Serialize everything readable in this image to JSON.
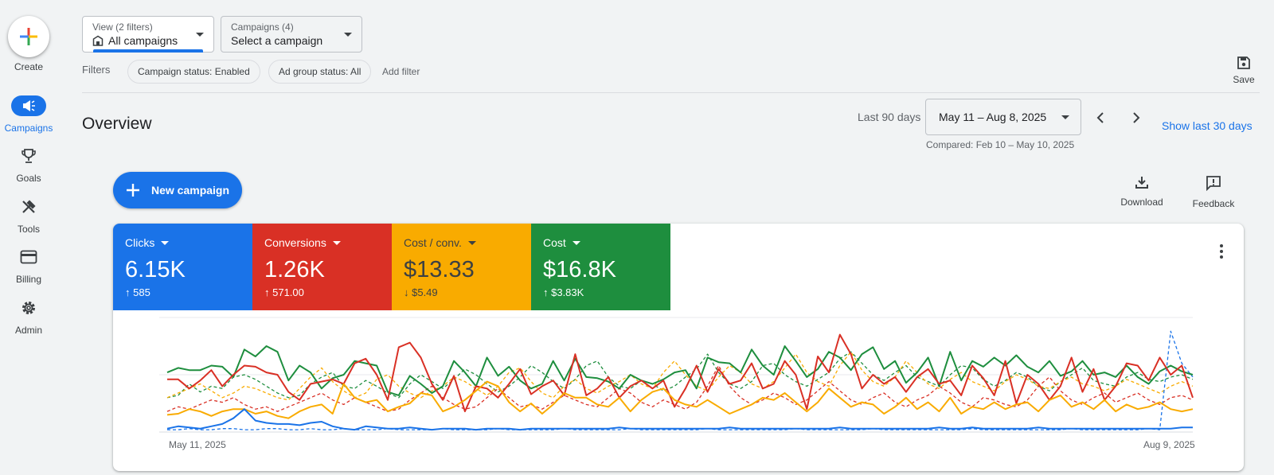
{
  "rail": {
    "create_label": "Create",
    "items": [
      {
        "label": "Campaigns",
        "icon": "megaphone-icon",
        "active": true
      },
      {
        "label": "Goals",
        "icon": "trophy-icon",
        "active": false
      },
      {
        "label": "Tools",
        "icon": "tools-icon",
        "active": false
      },
      {
        "label": "Billing",
        "icon": "credit-card-icon",
        "active": false
      },
      {
        "label": "Admin",
        "icon": "gear-icon",
        "active": false
      }
    ]
  },
  "filterbar": {
    "view_caption": "View (2 filters)",
    "view_value": "All campaigns",
    "campaigns_caption": "Campaigns (4)",
    "campaigns_value": "Select a campaign",
    "filters_label": "Filters",
    "chips": [
      "Campaign status: Enabled",
      "Ad group status: All"
    ],
    "add_filter": "Add filter",
    "save_label": "Save"
  },
  "header": {
    "title": "Overview",
    "range_label": "Last 90 days",
    "date_range": "May 11 – Aug 8, 2025",
    "compared": "Compared: Feb 10 – May 10, 2025",
    "show_last": "Show last 30 days"
  },
  "actions": {
    "new_campaign": "New campaign",
    "download": "Download",
    "feedback": "Feedback"
  },
  "metrics": [
    {
      "name": "Clicks",
      "value": "6.15K",
      "delta": "↑ 585",
      "color": "#1a73e8"
    },
    {
      "name": "Conversions",
      "value": "1.26K",
      "delta": "↑ 571.00",
      "color": "#d93025"
    },
    {
      "name": "Cost / conv.",
      "value": "$13.33",
      "delta": "↓ $5.49",
      "color": "#f9ab00"
    },
    {
      "name": "Cost",
      "value": "$16.8K",
      "delta": "↑ $3.83K",
      "color": "#1e8e3e"
    }
  ],
  "chart_data": {
    "type": "line",
    "x_start_label": "May 11, 2025",
    "x_end_label": "Aug 9, 2025",
    "grid": true,
    "series": [
      {
        "color": "#1e8e3e",
        "style": "solid",
        "values": [
          52,
          56,
          54,
          54,
          58,
          57,
          48,
          72,
          66,
          75,
          70,
          45,
          58,
          52,
          38,
          47,
          50,
          62,
          60,
          58,
          35,
          32,
          49,
          42,
          34,
          40,
          62,
          52,
          40,
          65,
          49,
          57,
          45,
          38,
          42,
          62,
          45,
          64,
          48,
          47,
          44,
          38,
          50,
          45,
          42,
          46,
          52,
          54,
          38,
          65,
          61,
          60,
          52,
          72,
          58,
          50,
          75,
          62,
          48,
          55,
          70,
          65,
          54,
          68,
          74,
          55,
          62,
          43,
          52,
          65,
          40,
          70,
          45,
          62,
          57,
          65,
          58,
          67,
          57,
          52,
          62,
          49,
          53,
          62,
          50,
          52,
          48,
          58,
          48,
          42,
          53,
          58,
          53,
          50
        ]
      },
      {
        "color": "#d93025",
        "style": "solid",
        "values": [
          46,
          46,
          38,
          45,
          54,
          40,
          50,
          58,
          57,
          52,
          50,
          35,
          28,
          42,
          44,
          46,
          42,
          60,
          64,
          50,
          28,
          74,
          78,
          65,
          42,
          28,
          49,
          18,
          40,
          38,
          30,
          42,
          55,
          33,
          40,
          45,
          32,
          68,
          32,
          38,
          48,
          30,
          40,
          45,
          38,
          45,
          22,
          38,
          58,
          35,
          55,
          42,
          45,
          60,
          38,
          42,
          62,
          50,
          20,
          66,
          52,
          85,
          68,
          38,
          50,
          42,
          48,
          35,
          48,
          55,
          42,
          45,
          32,
          58,
          47,
          32,
          62,
          25,
          50,
          42,
          28,
          40,
          65,
          35,
          55,
          28,
          40,
          60,
          58,
          45,
          65,
          50,
          58,
          30
        ]
      },
      {
        "color": "#f9ab00",
        "style": "solid",
        "values": [
          15,
          16,
          20,
          18,
          14,
          18,
          20,
          20,
          16,
          18,
          14,
          12,
          18,
          22,
          24,
          16,
          42,
          30,
          26,
          28,
          18,
          22,
          25,
          34,
          32,
          18,
          22,
          28,
          36,
          44,
          40,
          26,
          18,
          25,
          16,
          24,
          34,
          30,
          30,
          24,
          22,
          30,
          18,
          28,
          35,
          38,
          28,
          24,
          22,
          28,
          22,
          16,
          20,
          24,
          30,
          28,
          34,
          26,
          18,
          26,
          38,
          30,
          22,
          26,
          24,
          16,
          22,
          30,
          20,
          26,
          18,
          30,
          16,
          22,
          20,
          26,
          20,
          24,
          26,
          18,
          28,
          32,
          22,
          26,
          20,
          28,
          18,
          24,
          20,
          22,
          26,
          20,
          18,
          20
        ]
      },
      {
        "color": "#1a73e8",
        "style": "solid",
        "values": [
          3,
          5,
          4,
          3,
          5,
          7,
          12,
          20,
          10,
          8,
          7,
          7,
          6,
          8,
          9,
          5,
          3,
          2,
          5,
          4,
          3,
          3,
          4,
          3,
          2,
          3,
          3,
          3,
          2,
          3,
          3,
          3,
          2,
          3,
          3,
          3,
          3,
          3,
          3,
          3,
          3,
          4,
          3,
          3,
          3,
          3,
          3,
          3,
          3,
          3,
          3,
          4,
          3,
          3,
          3,
          3,
          3,
          3,
          3,
          3,
          3,
          4,
          3,
          3,
          3,
          3,
          3,
          3,
          3,
          3,
          4,
          3,
          3,
          4,
          3,
          3,
          3,
          3,
          3,
          4,
          3,
          3,
          3,
          3,
          3,
          3,
          3,
          3,
          3,
          3,
          3,
          3,
          4,
          4
        ]
      },
      {
        "color": "#1e8e3e",
        "style": "dashed",
        "values": [
          30,
          32,
          42,
          35,
          40,
          38,
          48,
          50,
          46,
          40,
          34,
          30,
          32,
          42,
          48,
          52,
          40,
          38,
          45,
          40,
          34,
          30,
          42,
          50,
          44,
          38,
          46,
          55,
          50,
          42,
          35,
          40,
          48,
          58,
          52,
          44,
          38,
          46,
          58,
          62,
          48,
          40,
          38,
          45,
          42,
          36,
          40,
          48,
          55,
          68,
          52,
          42,
          38,
          44,
          58,
          60,
          50,
          44,
          40,
          46,
          52,
          64,
          70,
          60,
          50,
          45,
          52,
          58,
          48,
          44,
          40,
          50,
          58,
          56,
          46,
          40,
          45,
          52,
          48,
          40,
          36,
          44,
          50,
          56,
          45,
          42,
          40,
          48,
          52,
          46,
          44,
          48,
          50,
          46
        ]
      },
      {
        "color": "#d93025",
        "style": "dashed",
        "values": [
          18,
          22,
          20,
          24,
          28,
          26,
          30,
          24,
          20,
          22,
          18,
          22,
          26,
          30,
          34,
          28,
          24,
          30,
          26,
          22,
          18,
          20,
          28,
          34,
          40,
          30,
          24,
          20,
          22,
          30,
          38,
          30,
          22,
          24,
          20,
          26,
          32,
          28,
          24,
          22,
          30,
          38,
          34,
          26,
          22,
          28,
          24,
          20,
          26,
          40,
          58,
          40,
          30,
          24,
          28,
          34,
          30,
          24,
          28,
          36,
          44,
          36,
          28,
          24,
          30,
          34,
          26,
          22,
          28,
          32,
          40,
          34,
          26,
          22,
          30,
          28,
          24,
          22,
          28,
          40,
          48,
          36,
          28,
          24,
          30,
          34,
          26,
          30,
          34,
          28,
          24,
          30,
          32,
          28
        ]
      },
      {
        "color": "#f9ab00",
        "style": "dashed",
        "values": [
          30,
          34,
          38,
          42,
          36,
          30,
          34,
          40,
          38,
          34,
          30,
          28,
          38,
          48,
          56,
          44,
          36,
          30,
          34,
          46,
          50,
          40,
          34,
          30,
          36,
          40,
          48,
          44,
          38,
          32,
          40,
          52,
          56,
          44,
          34,
          30,
          40,
          46,
          38,
          34,
          40,
          44,
          50,
          42,
          38,
          52,
          62,
          50,
          40,
          36,
          48,
          58,
          52,
          42,
          38,
          44,
          56,
          68,
          52,
          44,
          40,
          58,
          70,
          54,
          44,
          40,
          48,
          62,
          52,
          42,
          38,
          46,
          52,
          44,
          40,
          36,
          44,
          50,
          46,
          40,
          38,
          44,
          48,
          42,
          40,
          36,
          40,
          46,
          42,
          38,
          34,
          40,
          44,
          40
        ]
      },
      {
        "color": "#1a73e8",
        "style": "dashed",
        "values": [
          2,
          2,
          3,
          2,
          2,
          3,
          3,
          2,
          2,
          3,
          3,
          2,
          2,
          3,
          2,
          2,
          3,
          2,
          2,
          2,
          3,
          2,
          2,
          2,
          2,
          3,
          2,
          2,
          2,
          2,
          3,
          2,
          2,
          2,
          2,
          2,
          3,
          2,
          2,
          2,
          2,
          2,
          3,
          2,
          2,
          2,
          2,
          2,
          2,
          3,
          2,
          2,
          2,
          2,
          2,
          2,
          2,
          3,
          2,
          2,
          2,
          2,
          2,
          2,
          3,
          2,
          2,
          2,
          2,
          2,
          2,
          2,
          2,
          3,
          2,
          2,
          2,
          2,
          2,
          2,
          2,
          2,
          3,
          2,
          2,
          2,
          2,
          2,
          2,
          3,
          2,
          88,
          60,
          48
        ]
      }
    ]
  }
}
